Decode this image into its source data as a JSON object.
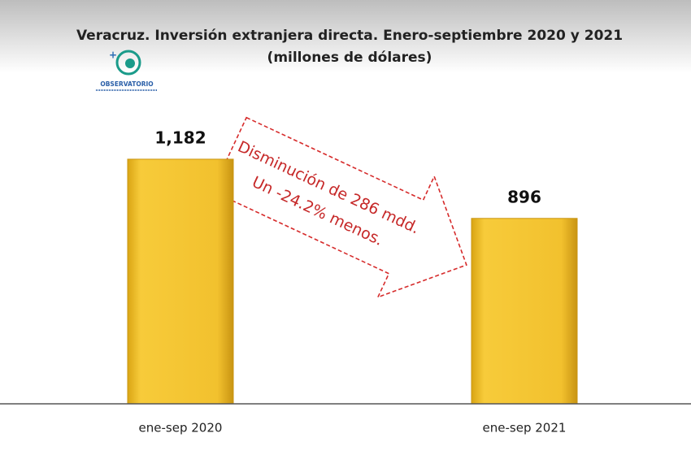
{
  "chart_data": {
    "type": "bar",
    "title": "Veracruz. Inversión extranjera directa. Enero-septiembre 2020 y 2021",
    "subtitle": "(millones de dólares)",
    "logo_text": "OBSERVATORIO",
    "annotations": [
      "Disminución de 286 mdd.",
      "Un -24.2% menos."
    ],
    "categories": [
      "ene-sep 2020",
      "ene-sep 2021"
    ],
    "values": [
      1182,
      896
    ],
    "value_labels": [
      "1,182",
      "896"
    ],
    "color": "#f2c12e",
    "ylim": [
      0,
      1400
    ],
    "grid": false
  }
}
